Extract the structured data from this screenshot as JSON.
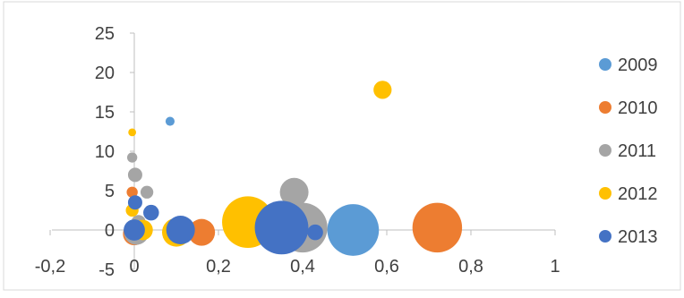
{
  "chart_data": {
    "type": "bubble",
    "title": "",
    "xlabel": "",
    "ylabel": "",
    "xlim": [
      -0.2,
      1
    ],
    "ylim": [
      -5,
      25
    ],
    "x_ticks": [
      -0.2,
      0,
      0.2,
      0.4,
      0.6,
      0.8,
      1
    ],
    "x_tick_labels": [
      "-0,2",
      "0",
      "0,2",
      "0,4",
      "0,6",
      "0,8",
      "1"
    ],
    "y_ticks": [
      -5,
      0,
      5,
      10,
      15,
      20,
      25
    ],
    "y_tick_labels": [
      "-5",
      "0",
      "5",
      "10",
      "15",
      "20",
      "25"
    ],
    "grid": false,
    "legend_position": "right",
    "series": [
      {
        "name": "2009",
        "color": "#5B9BD5",
        "points": [
          {
            "x": 0.085,
            "y": 13.8,
            "size": 0.4
          },
          {
            "x": 0.52,
            "y": 0.0,
            "size": 13
          }
        ]
      },
      {
        "name": "2010",
        "color": "#ED7D31",
        "points": [
          {
            "x": 0.72,
            "y": 0.3,
            "size": 12
          },
          {
            "x": 0.16,
            "y": -0.3,
            "size": 3.5
          },
          {
            "x": 0.0,
            "y": -0.5,
            "size": 2.5
          },
          {
            "x": -0.005,
            "y": 4.8,
            "size": 0.6
          }
        ]
      },
      {
        "name": "2011",
        "color": "#A5A5A5",
        "points": [
          {
            "x": -0.005,
            "y": 9.2,
            "size": 0.5
          },
          {
            "x": 0.002,
            "y": 7.0,
            "size": 1.0
          },
          {
            "x": 0.03,
            "y": 4.8,
            "size": 0.8
          },
          {
            "x": 0.38,
            "y": 4.8,
            "size": 4
          },
          {
            "x": 0.4,
            "y": 0.3,
            "size": 12
          },
          {
            "x": 0.01,
            "y": 1.0,
            "size": 1.0
          },
          {
            "x": 0.005,
            "y": -0.3,
            "size": 3
          }
        ]
      },
      {
        "name": "2012",
        "color": "#FFC000",
        "points": [
          {
            "x": 0.59,
            "y": 17.8,
            "size": 1.6
          },
          {
            "x": -0.005,
            "y": 12.4,
            "size": 0.3
          },
          {
            "x": 0.27,
            "y": 1.0,
            "size": 13
          },
          {
            "x": 0.1,
            "y": -0.3,
            "size": 4
          },
          {
            "x": -0.005,
            "y": 2.5,
            "size": 0.8
          },
          {
            "x": 0.02,
            "y": 0.0,
            "size": 2.0
          }
        ]
      },
      {
        "name": "2013",
        "color": "#4472C4",
        "points": [
          {
            "x": 0.35,
            "y": 0.3,
            "size": 14
          },
          {
            "x": 0.11,
            "y": 0.0,
            "size": 4
          },
          {
            "x": 0.04,
            "y": 2.2,
            "size": 1.2
          },
          {
            "x": 0.002,
            "y": 3.5,
            "size": 1.0
          },
          {
            "x": 0.0,
            "y": 0.0,
            "size": 2.2
          },
          {
            "x": 0.43,
            "y": -0.3,
            "size": 1.2
          }
        ]
      }
    ]
  }
}
